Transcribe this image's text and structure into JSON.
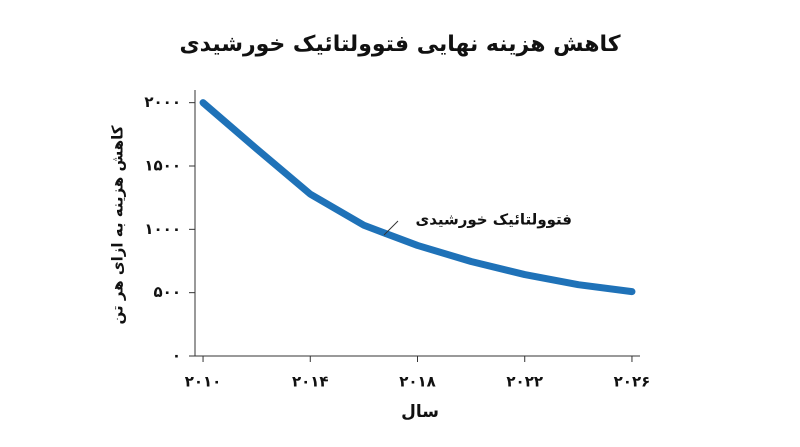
{
  "chart_data": {
    "type": "line",
    "title": "کاهش هزینه نهایی فتوولتائیک خورشیدی",
    "x_label": "سال",
    "y_label": "کاهش هزینه به ازای هر تن",
    "x": [
      2010,
      2012,
      2014,
      2016,
      2018,
      2020,
      2022,
      2024,
      2026
    ],
    "series": [
      {
        "name": "فتوولتائیک خورشیدی",
        "color": "#1f72b8",
        "values": [
          2000,
          1635,
          1278,
          1032,
          873,
          746,
          643,
          563,
          508
        ]
      }
    ],
    "xlim": [
      2009.7,
      2026.3
    ],
    "ylim": [
      0,
      2100
    ],
    "xticks": [
      {
        "value": 2010,
        "label": "۲۰۱۰"
      },
      {
        "value": 2014,
        "label": "۲۰۱۴"
      },
      {
        "value": 2018,
        "label": "۲۰۱۸"
      },
      {
        "value": 2022,
        "label": "۲۰۲۲"
      },
      {
        "value": 2026,
        "label": "۲۰۲۶"
      }
    ],
    "yticks": [
      {
        "value": 0,
        "label": "۰"
      },
      {
        "value": 500,
        "label": "۵۰۰"
      },
      {
        "value": 1000,
        "label": "۱۰۰۰"
      },
      {
        "value": 1500,
        "label": "۱۵۰۰"
      },
      {
        "value": 2000,
        "label": "۲۰۰۰"
      }
    ]
  }
}
